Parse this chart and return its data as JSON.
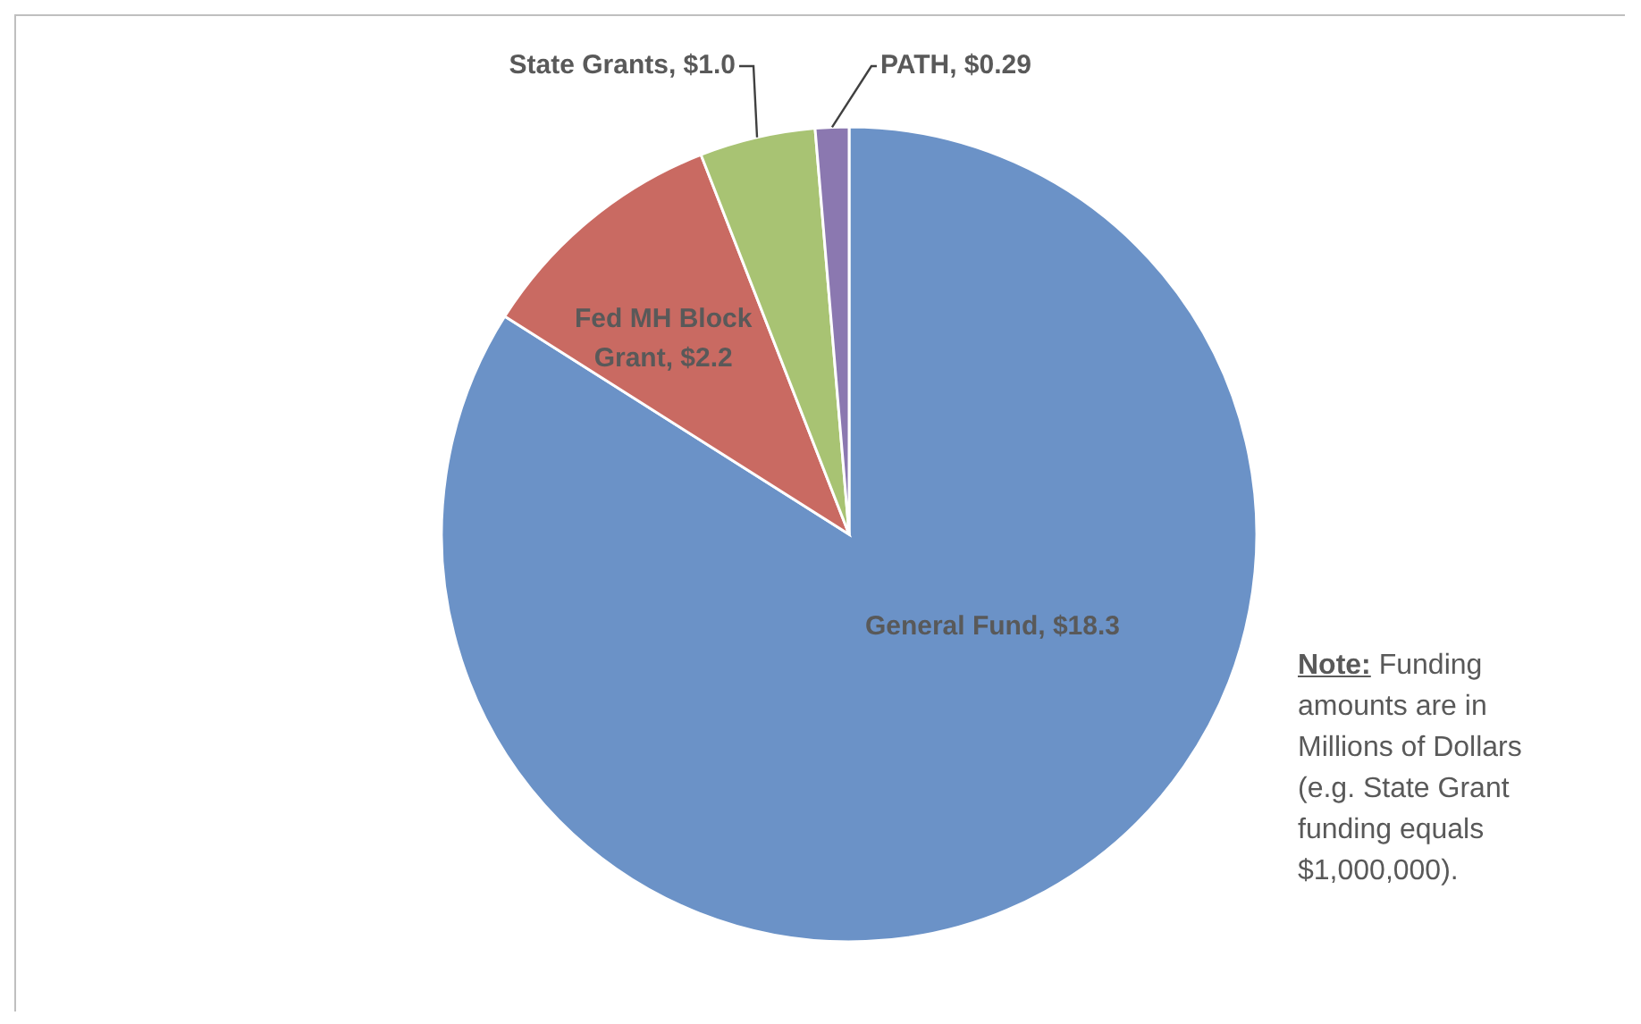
{
  "chart_data": {
    "type": "pie",
    "categories": [
      "General Fund",
      "Fed MH Block Grant",
      "State Grants",
      "PATH"
    ],
    "values": [
      18.3,
      2.2,
      1.0,
      0.29
    ],
    "value_labels": [
      "$18.3",
      "$2.2",
      "$1.0",
      "$0.29"
    ],
    "colors": [
      "#6b92c7",
      "#c96a62",
      "#a8c373",
      "#8b78b0"
    ],
    "legend": false,
    "annotations": [
      "Note:",
      "Funding amounts are in Millions of Dollars (e.g. State Grant funding equals $1,000,000)."
    ]
  }
}
